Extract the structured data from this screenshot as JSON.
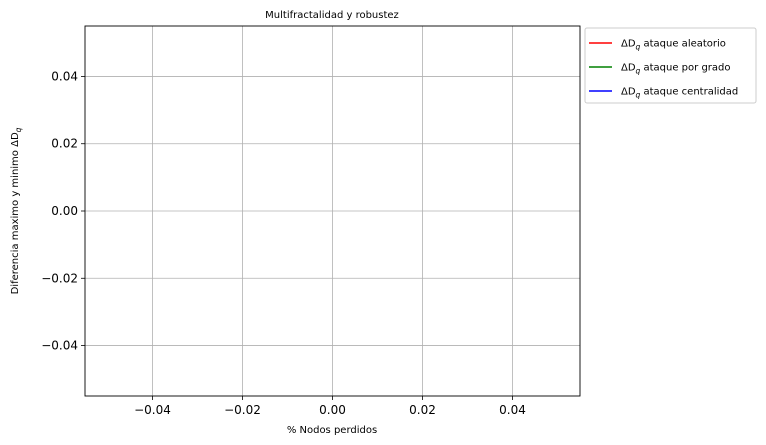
{
  "chart_data": {
    "type": "line",
    "title": "Multifractalidad y robustez",
    "xlabel": "% Nodos perdidos",
    "ylabel": "Diferencia maximo y minimo ΔD",
    "ylabel_sub": "q",
    "xlim": [
      -0.055,
      0.055
    ],
    "ylim": [
      -0.055,
      0.055
    ],
    "x_ticks": [
      -0.04,
      -0.02,
      0.0,
      0.02,
      0.04
    ],
    "x_tick_labels": [
      "−0.04",
      "−0.02",
      "0.00",
      "0.02",
      "0.04"
    ],
    "y_ticks": [
      -0.04,
      -0.02,
      0.0,
      0.02,
      0.04
    ],
    "y_tick_labels": [
      "−0.04",
      "−0.02",
      "0.00",
      "0.02",
      "0.04"
    ],
    "grid": true,
    "legend_position": "outside-top-right",
    "series": [
      {
        "name": "ΔD",
        "name_sub": "q",
        "name_rest": "ataque aleatorio",
        "color": "#ff0000",
        "x": [],
        "y": []
      },
      {
        "name": "ΔD",
        "name_sub": "q",
        "name_rest": "ataque por grado",
        "color": "#008000",
        "x": [],
        "y": []
      },
      {
        "name": "ΔD",
        "name_sub": "q",
        "name_rest": "ataque centralidad",
        "color": "#0000ff",
        "x": [],
        "y": []
      }
    ]
  }
}
